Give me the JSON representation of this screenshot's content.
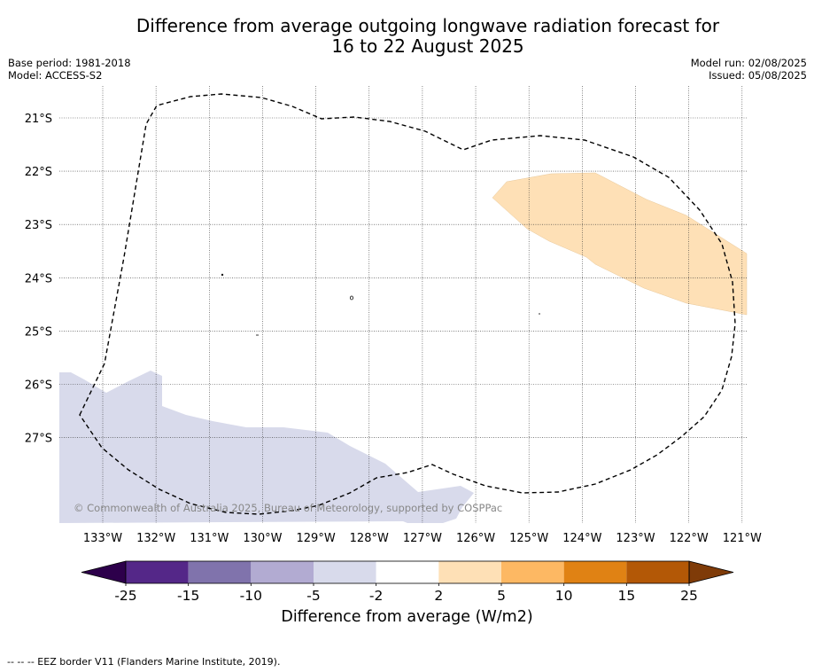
{
  "title_line1": "Difference from average outgoing longwave radiation forecast for",
  "title_line2": "16 to 22 August 2025",
  "base_period": "Base period: 1981-2018",
  "model": "Model: ACCESS-S2",
  "model_run": "Model run: 02/08/2025",
  "issued": "Issued: 05/08/2025",
  "copyright": "© Commonwealth of Australia 2025, Bureau of Meteorology, supported by COSPPac",
  "lat_labels": [
    "21°S",
    "22°S",
    "23°S",
    "24°S",
    "25°S",
    "26°S",
    "27°S"
  ],
  "lon_labels": [
    "133°W",
    "132°W",
    "131°W",
    "130°W",
    "129°W",
    "128°W",
    "127°W",
    "126°W",
    "125°W",
    "124°W",
    "123°W",
    "122°W",
    "121°W"
  ],
  "colorbar": {
    "label": "Difference from average (W/m2)",
    "ticks": [
      "-25",
      "-15",
      "-10",
      "-5",
      "-2",
      "2",
      "5",
      "10",
      "15",
      "25"
    ],
    "colors": [
      "#2d004b",
      "#542788",
      "#8073ac",
      "#b2abd2",
      "#d8daeb",
      "#ffffff",
      "#fee0b6",
      "#fdb863",
      "#e08214",
      "#b35806",
      "#7f3b08"
    ]
  },
  "footnote": "--  --  -- EEZ border V11 (Flanders Marine Institute, 2019).",
  "anomaly_colors": {
    "positive_2_5": "#fee0b6",
    "negative_2_5": "#d8daeb"
  }
}
